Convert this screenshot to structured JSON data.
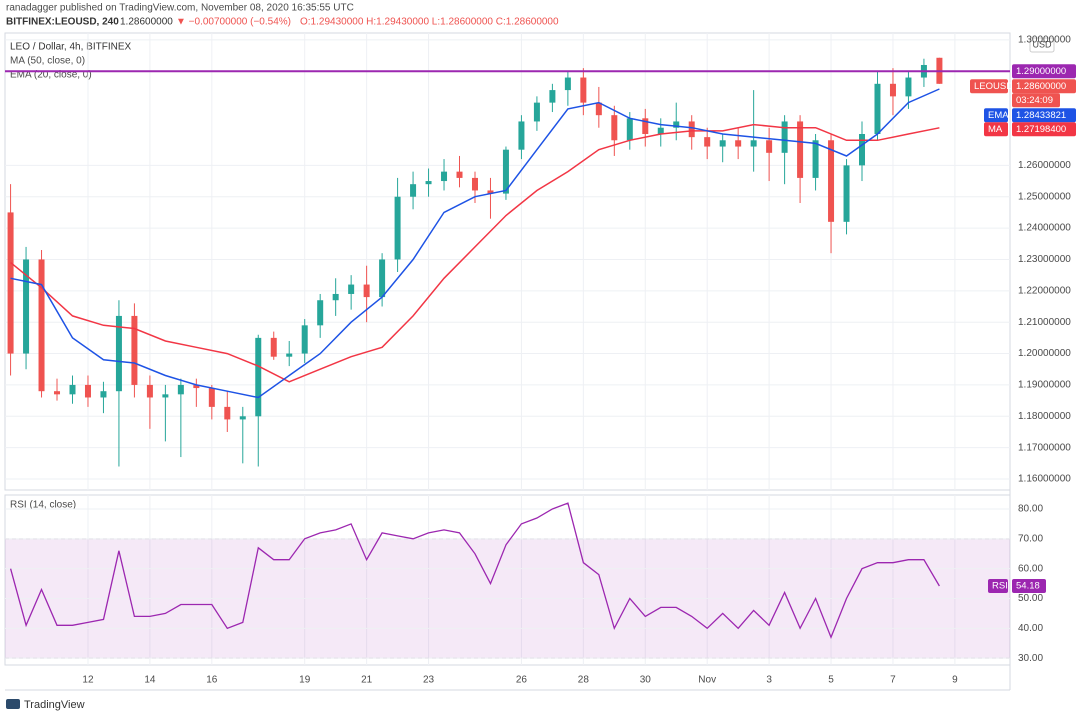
{
  "header": {
    "publisher": "ranadagger published on TradingView.com, November 08, 2020 16:35:55 UTC",
    "symbol": "BITFINEX:LEOUSD, 240",
    "last": "1.28600000",
    "change": "▼ −0.00700000 (−0.54%)",
    "ohlc": "O:1.29430000 H:1.29430000 L:1.28600000 C:1.28600000"
  },
  "chart_data": [
    {
      "type": "candlestick",
      "title": "LEO / Dollar, 4h, BITFINEX",
      "currency": "USD",
      "up_color": "#26a69a",
      "down_color": "#ef5350",
      "x": [
        9.5,
        10,
        10.5,
        11,
        11.5,
        12,
        12.5,
        13,
        13.5,
        14,
        14.5,
        15,
        15.5,
        16,
        16.5,
        17,
        17.5,
        18,
        18.5,
        19,
        19.5,
        20,
        20.5,
        21,
        21.5,
        22,
        22.5,
        23,
        23.5,
        24,
        24.5,
        25,
        25.5,
        26,
        26.5,
        27,
        27.5,
        28,
        28.5,
        29,
        29.5,
        30,
        30.5,
        31,
        31.5,
        32,
        32.5,
        33,
        33.5,
        34,
        34.5,
        35,
        35.5,
        36,
        36.5,
        37,
        37.5,
        38,
        38.5,
        39,
        39.5
      ],
      "open": [
        1.245,
        1.2,
        1.23,
        1.188,
        1.187,
        1.19,
        1.186,
        1.188,
        1.212,
        1.19,
        1.186,
        1.187,
        1.19,
        1.189,
        1.183,
        1.179,
        1.18,
        1.205,
        1.199,
        1.2,
        1.209,
        1.217,
        1.219,
        1.222,
        1.218,
        1.23,
        1.25,
        1.254,
        1.255,
        1.258,
        1.256,
        1.252,
        1.251,
        1.265,
        1.274,
        1.28,
        1.284,
        1.288,
        1.28,
        1.276,
        1.268,
        1.275,
        1.27,
        1.272,
        1.274,
        1.269,
        1.266,
        1.268,
        1.266,
        1.268,
        1.264,
        1.274,
        1.256,
        1.268,
        1.242,
        1.26,
        1.27,
        1.286,
        1.282,
        1.288,
        1.2943
      ],
      "high": [
        1.254,
        1.234,
        1.233,
        1.192,
        1.193,
        1.193,
        1.191,
        1.217,
        1.216,
        1.193,
        1.19,
        1.192,
        1.192,
        1.19,
        1.188,
        1.183,
        1.206,
        1.207,
        1.204,
        1.211,
        1.219,
        1.224,
        1.225,
        1.228,
        1.232,
        1.256,
        1.258,
        1.259,
        1.262,
        1.263,
        1.258,
        1.256,
        1.266,
        1.276,
        1.282,
        1.286,
        1.29,
        1.291,
        1.285,
        1.279,
        1.277,
        1.278,
        1.275,
        1.28,
        1.276,
        1.272,
        1.27,
        1.272,
        1.284,
        1.272,
        1.276,
        1.276,
        1.27,
        1.27,
        1.262,
        1.274,
        1.29,
        1.291,
        1.29,
        1.294,
        1.2943
      ],
      "low": [
        1.193,
        1.195,
        1.186,
        1.185,
        1.184,
        1.183,
        1.181,
        1.164,
        1.186,
        1.176,
        1.172,
        1.167,
        1.183,
        1.179,
        1.175,
        1.165,
        1.164,
        1.198,
        1.196,
        1.197,
        1.205,
        1.212,
        1.214,
        1.21,
        1.215,
        1.226,
        1.246,
        1.25,
        1.252,
        1.253,
        1.248,
        1.243,
        1.249,
        1.262,
        1.271,
        1.277,
        1.279,
        1.276,
        1.272,
        1.263,
        1.265,
        1.266,
        1.266,
        1.268,
        1.265,
        1.262,
        1.261,
        1.262,
        1.258,
        1.255,
        1.254,
        1.248,
        1.252,
        1.232,
        1.238,
        1.255,
        1.268,
        1.276,
        1.278,
        1.285,
        1.286
      ],
      "close": [
        1.2,
        1.23,
        1.188,
        1.187,
        1.19,
        1.186,
        1.188,
        1.212,
        1.19,
        1.186,
        1.187,
        1.19,
        1.189,
        1.183,
        1.179,
        1.18,
        1.205,
        1.199,
        1.2,
        1.209,
        1.217,
        1.219,
        1.222,
        1.218,
        1.23,
        1.25,
        1.254,
        1.255,
        1.258,
        1.256,
        1.252,
        1.251,
        1.265,
        1.274,
        1.28,
        1.284,
        1.288,
        1.28,
        1.276,
        1.268,
        1.275,
        1.27,
        1.272,
        1.274,
        1.269,
        1.266,
        1.268,
        1.266,
        1.268,
        1.264,
        1.274,
        1.256,
        1.268,
        1.242,
        1.26,
        1.27,
        1.286,
        1.282,
        1.288,
        1.292,
        1.286
      ],
      "symbol_tag": "LEOUSD",
      "close_label": "1.28600000",
      "countdown": "03:24:09",
      "level": {
        "value": 1.29,
        "label": "1.29000000",
        "color": "#9c27b0"
      },
      "series": [
        {
          "name": "MA (50, close, 0)",
          "tag": "MA",
          "value_label": "1.27198400",
          "color": "#f23645",
          "x": [
            9.5,
            10.5,
            11.5,
            12.5,
            13.5,
            14.5,
            15.5,
            16.5,
            17.5,
            18.5,
            19.5,
            20.5,
            21.5,
            22.5,
            23.5,
            24.5,
            25.5,
            26.5,
            27.5,
            28.5,
            29.5,
            30.5,
            31.5,
            32.5,
            33.5,
            34.5,
            35.5,
            36.5,
            37.5,
            38.5,
            39.5
          ],
          "values": [
            1.229,
            1.221,
            1.212,
            1.209,
            1.208,
            1.204,
            1.202,
            1.2,
            1.196,
            1.191,
            1.195,
            1.199,
            1.202,
            1.212,
            1.224,
            1.234,
            1.244,
            1.252,
            1.258,
            1.265,
            1.268,
            1.27,
            1.271,
            1.271,
            1.273,
            1.272,
            1.272,
            1.268,
            1.268,
            1.27,
            1.271984
          ]
        },
        {
          "name": "EMA (20, close, 0)",
          "tag": "EMA",
          "value_label": "1.28433821",
          "color": "#1e53e5",
          "x": [
            9.5,
            10.5,
            11.5,
            12.5,
            13.5,
            14.5,
            15.5,
            16.5,
            17.5,
            18.5,
            19.5,
            20.5,
            21.5,
            22.5,
            23.5,
            24.5,
            25.5,
            26.5,
            27.5,
            28.5,
            29.5,
            30.5,
            31.5,
            32.5,
            33.5,
            34.5,
            35.5,
            36.5,
            37.5,
            38.5,
            39.5
          ],
          "values": [
            1.224,
            1.222,
            1.205,
            1.198,
            1.197,
            1.193,
            1.19,
            1.188,
            1.186,
            1.193,
            1.2,
            1.21,
            1.218,
            1.23,
            1.245,
            1.25,
            1.252,
            1.265,
            1.278,
            1.28,
            1.275,
            1.273,
            1.272,
            1.27,
            1.269,
            1.268,
            1.267,
            1.263,
            1.27,
            1.28,
            1.28433821
          ]
        }
      ],
      "xlim": [
        9.32,
        41.78
      ],
      "ylim": [
        1.1565,
        1.3022
      ],
      "yticks": [
        {
          "value": 1.16,
          "label": "1.16000000"
        },
        {
          "value": 1.17,
          "label": "1.17000000"
        },
        {
          "value": 1.18,
          "label": "1.18000000"
        },
        {
          "value": 1.19,
          "label": "1.19000000"
        },
        {
          "value": 1.2,
          "label": "1.20000000"
        },
        {
          "value": 1.21,
          "label": "1.21000000"
        },
        {
          "value": 1.22,
          "label": "1.22000000"
        },
        {
          "value": 1.23,
          "label": "1.23000000"
        },
        {
          "value": 1.24,
          "label": "1.24000000"
        },
        {
          "value": 1.25,
          "label": "1.25000000"
        },
        {
          "value": 1.26,
          "label": "1.26000000"
        },
        {
          "value": 1.3,
          "label": "1.30000000"
        }
      ],
      "grid": true
    },
    {
      "type": "line",
      "title": "RSI (14, close)",
      "series": [
        {
          "name": "RSI",
          "color": "#9c27b0",
          "x": [
            9.5,
            10,
            10.5,
            11,
            11.5,
            12,
            12.5,
            13,
            13.5,
            14,
            14.5,
            15,
            15.5,
            16,
            16.5,
            17,
            17.5,
            18,
            18.5,
            19,
            19.5,
            20,
            20.5,
            21,
            21.5,
            22,
            22.5,
            23,
            23.5,
            24,
            24.5,
            25,
            25.5,
            26,
            26.5,
            27,
            27.5,
            28,
            28.5,
            29,
            29.5,
            30,
            30.5,
            31,
            31.5,
            32,
            32.5,
            33,
            33.5,
            34,
            34.5,
            35,
            35.5,
            36,
            36.5,
            37,
            37.5,
            38,
            38.5,
            39,
            39.5
          ],
          "values": [
            60,
            41,
            53,
            41,
            41,
            42,
            43,
            66,
            44,
            44,
            45,
            48,
            48,
            48,
            40,
            42,
            67,
            63,
            63,
            70,
            72,
            73,
            75,
            63,
            72,
            71,
            70,
            72,
            73,
            72,
            65,
            55,
            68,
            75,
            77,
            80,
            82,
            62,
            58,
            40,
            50,
            44,
            47,
            47,
            44,
            40,
            45,
            40,
            46,
            41,
            52,
            40,
            50,
            37,
            50,
            60,
            62,
            62,
            63,
            63,
            54.18
          ]
        }
      ],
      "band": [
        30,
        70
      ],
      "band_color": "#9c27b0",
      "xlim": [
        9.32,
        41.78
      ],
      "ylim": [
        27.7,
        84.7
      ],
      "yticks": [
        {
          "value": 30,
          "label": "30.00"
        },
        {
          "value": 40,
          "label": "40.00"
        },
        {
          "value": 50,
          "label": "50.00"
        },
        {
          "value": 60,
          "label": "60.00"
        },
        {
          "value": 70,
          "label": "70.00"
        },
        {
          "value": 80,
          "label": "80.00"
        }
      ],
      "xticks": [
        12,
        14,
        16,
        19,
        21,
        23,
        26,
        28,
        30,
        {
          "value": 32,
          "label": "Nov"
        },
        {
          "value": 34,
          "label": "3"
        },
        {
          "value": 36,
          "label": "5"
        },
        {
          "value": 38,
          "label": "7"
        },
        {
          "value": 40,
          "label": "9"
        }
      ],
      "grid": true
    }
  ],
  "footer": "TradingView"
}
